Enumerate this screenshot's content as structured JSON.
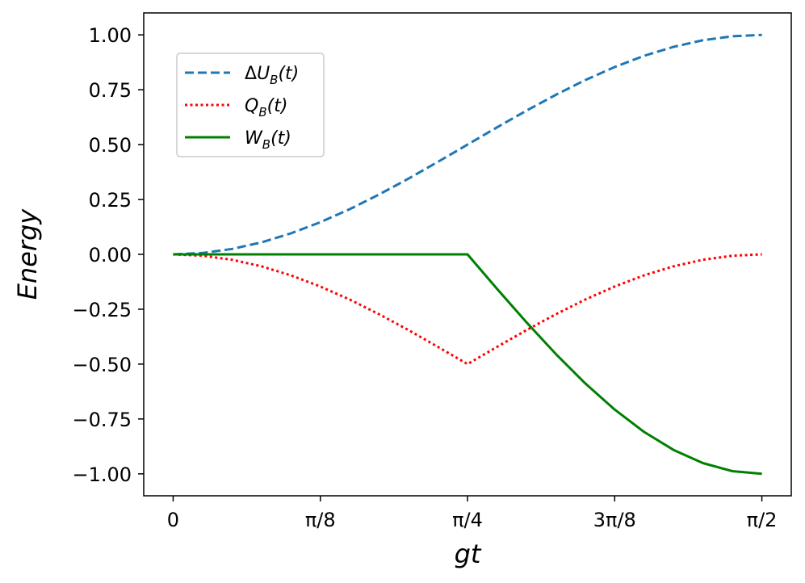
{
  "chart_data": {
    "type": "line",
    "xlabel": "gt",
    "ylabel": "Energy",
    "xlim": [
      -0.0785,
      1.6493
    ],
    "ylim": [
      -1.1,
      1.1
    ],
    "xticks": [
      {
        "value": 0,
        "label": "0"
      },
      {
        "value": 0.3927,
        "label": "π/8"
      },
      {
        "value": 0.7854,
        "label": "π/4"
      },
      {
        "value": 1.1781,
        "label": "3π/8"
      },
      {
        "value": 1.5708,
        "label": "π/2"
      }
    ],
    "yticks": [
      {
        "value": 1.0,
        "label": "1.00"
      },
      {
        "value": 0.75,
        "label": "0.75"
      },
      {
        "value": 0.5,
        "label": "0.50"
      },
      {
        "value": 0.25,
        "label": "0.25"
      },
      {
        "value": 0.0,
        "label": "0.00"
      },
      {
        "value": -0.25,
        "label": "−0.25"
      },
      {
        "value": -0.5,
        "label": "−0.50"
      },
      {
        "value": -0.75,
        "label": "−0.75"
      },
      {
        "value": -1.0,
        "label": "−1.00"
      }
    ],
    "x": [
      0,
      0.0785,
      0.1571,
      0.2356,
      0.3142,
      0.3927,
      0.4712,
      0.5498,
      0.6283,
      0.7069,
      0.7854,
      0.8639,
      0.9425,
      1.021,
      1.0996,
      1.1781,
      1.2566,
      1.3352,
      1.4137,
      1.4923,
      1.5708
    ],
    "series": [
      {
        "name": "ΔU_B(t)",
        "color": "#1f77b4",
        "dash": "dashed",
        "values": [
          0,
          0.0062,
          0.0245,
          0.0545,
          0.0955,
          0.1464,
          0.2061,
          0.273,
          0.3455,
          0.4218,
          0.5,
          0.5782,
          0.6545,
          0.727,
          0.7939,
          0.8536,
          0.9045,
          0.9455,
          0.9755,
          0.9938,
          1.0
        ]
      },
      {
        "name": "Q_B(t)",
        "color": "#ff0000",
        "dash": "dotted",
        "values": [
          0,
          -0.0062,
          -0.0245,
          -0.0545,
          -0.0955,
          -0.1464,
          -0.2061,
          -0.273,
          -0.3455,
          -0.4218,
          -0.5,
          -0.4218,
          -0.3455,
          -0.273,
          -0.2061,
          -0.1464,
          -0.0955,
          -0.0545,
          -0.0245,
          -0.0062,
          0
        ]
      },
      {
        "name": "W_B(t)",
        "color": "#008000",
        "dash": "solid",
        "values": [
          0,
          0,
          0,
          0,
          0,
          0,
          0,
          0,
          0,
          0,
          0,
          -0.1564,
          -0.309,
          -0.454,
          -0.5878,
          -0.7071,
          -0.809,
          -0.891,
          -0.9511,
          -0.9877,
          -1.0
        ]
      }
    ],
    "legend": {
      "placement": "upper-left",
      "entries": [
        {
          "prefix": "Δ",
          "main": "U",
          "sub": "B",
          "suffix": "(t)"
        },
        {
          "prefix": "",
          "main": "Q",
          "sub": "B",
          "suffix": "(t)"
        },
        {
          "prefix": "",
          "main": "W",
          "sub": "B",
          "suffix": "(t)"
        }
      ]
    }
  }
}
